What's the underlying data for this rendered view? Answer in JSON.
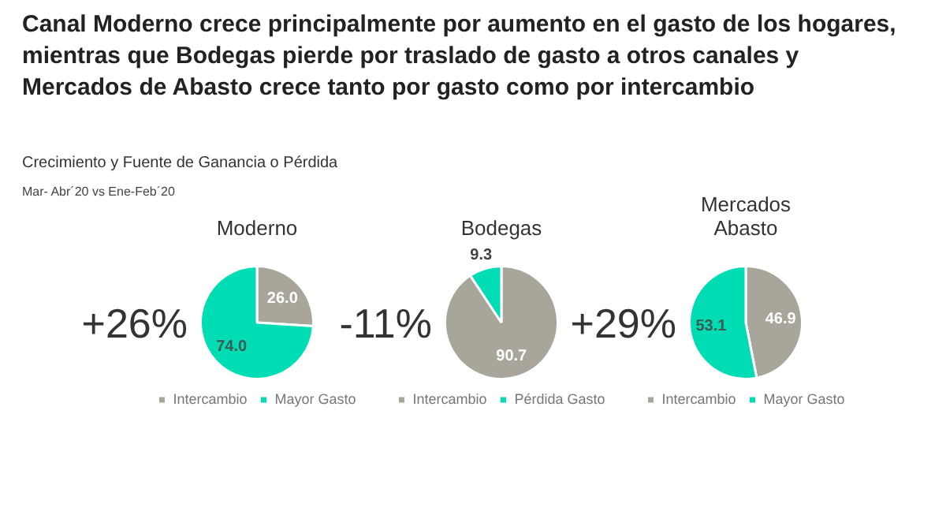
{
  "chart_data": [
    {
      "type": "other",
      "title": "Canal Moderno crece principalmente por aumento en el gasto de los hogares, mientras que Bodegas pierde por traslado de gasto a otros canales y Mercados de Abasto crece tanto por gasto como por intercambio",
      "subtitle": "Crecimiento y Fuente de Ganancia o Pérdida",
      "annotations": [
        "Mar- Abr´20 vs Ene-Feb´20"
      ]
    },
    {
      "type": "pie",
      "title": "Moderno",
      "categories": [
        "Intercambio",
        "Mayor Gasto"
      ],
      "values": [
        26.0,
        74.0
      ],
      "value_labels": [
        "26.0",
        "74.0"
      ],
      "colors": [
        "#a8a59a",
        "#00dcb4"
      ],
      "legend": "bottom",
      "annotations": [
        "+26%"
      ]
    },
    {
      "type": "pie",
      "title": "Bodegas",
      "categories": [
        "Intercambio",
        "Pérdida Gasto"
      ],
      "values": [
        90.7,
        9.3
      ],
      "value_labels": [
        "90.7",
        "9.3"
      ],
      "colors": [
        "#a8a59a",
        "#00dcb4"
      ],
      "legend": "bottom",
      "annotations": [
        "-11%"
      ]
    },
    {
      "type": "pie",
      "title": "Mercados Abasto",
      "categories": [
        "Intercambio",
        "Mayor Gasto"
      ],
      "values": [
        46.9,
        53.1
      ],
      "value_labels": [
        "46.9",
        "53.1"
      ],
      "colors": [
        "#a8a59a",
        "#00dcb4"
      ],
      "legend": "bottom",
      "annotations": [
        "+29%"
      ]
    }
  ]
}
